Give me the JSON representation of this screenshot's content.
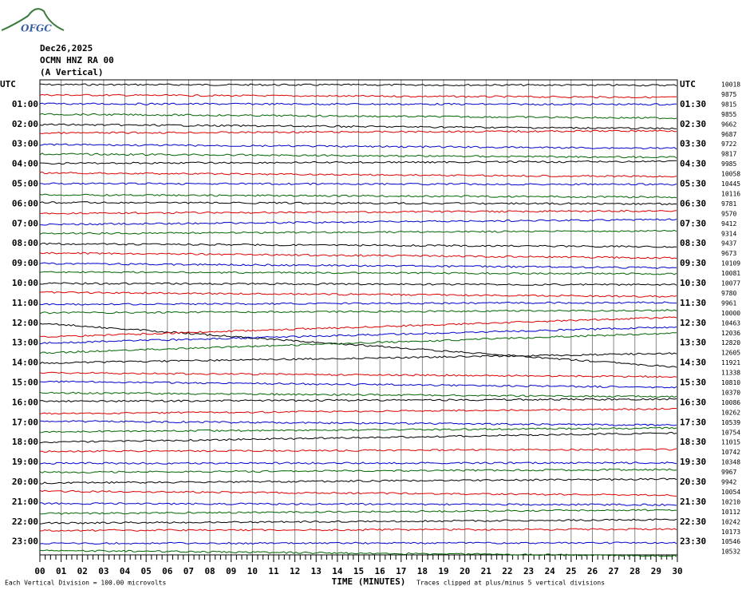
{
  "header": {
    "logo": "OFGC",
    "date": "Dec26,2025",
    "station": "OCMN HNZ RA 00",
    "component": "(A Vertical)"
  },
  "left_labels": [
    "UTC",
    "01:00",
    "02:00",
    "03:00",
    "04:00",
    "05:00",
    "06:00",
    "07:00",
    "08:00",
    "09:00",
    "10:00",
    "11:00",
    "12:00",
    "13:00",
    "14:00",
    "15:00",
    "16:00",
    "17:00",
    "18:00",
    "19:00",
    "20:00",
    "21:00",
    "22:00",
    "23:00"
  ],
  "right_labels": [
    "UTC",
    "01:30",
    "02:30",
    "03:30",
    "04:30",
    "05:30",
    "06:30",
    "07:30",
    "08:30",
    "09:30",
    "10:30",
    "11:30",
    "12:30",
    "13:30",
    "14:30",
    "15:30",
    "16:30",
    "17:30",
    "18:30",
    "19:30",
    "20:30",
    "21:30",
    "22:30",
    "23:30"
  ],
  "right_values": [
    "10018",
    "9875",
    "9815",
    "9855",
    "9662",
    "9687",
    "9722",
    "9817",
    "9985",
    "10058",
    "10445",
    "10116",
    "9781",
    "9570",
    "9412",
    "9314",
    "9437",
    "9673",
    "10109",
    "10081",
    "10077",
    "9780",
    "9961",
    "10000",
    "10463",
    "12036",
    "12820",
    "12605",
    "11921",
    "11338",
    "10810",
    "10370",
    "10086",
    "10262",
    "10539",
    "10754",
    "11015",
    "10742",
    "10348",
    "9967",
    "9942",
    "10054",
    "10210",
    "10112",
    "10242",
    "10173",
    "10546",
    "10532"
  ],
  "x_labels": [
    "00",
    "01",
    "02",
    "03",
    "04",
    "05",
    "06",
    "07",
    "08",
    "09",
    "10",
    "11",
    "12",
    "13",
    "14",
    "15",
    "16",
    "17",
    "18",
    "19",
    "20",
    "21",
    "22",
    "23",
    "24",
    "25",
    "26",
    "27",
    "28",
    "29",
    "30"
  ],
  "footer": {
    "scale": "Each Vertical Division =  100.00 microvolts",
    "axis_title": "TIME (MINUTES)",
    "clip": "Traces clipped at plus/minus 5 vertical divisions"
  }
}
